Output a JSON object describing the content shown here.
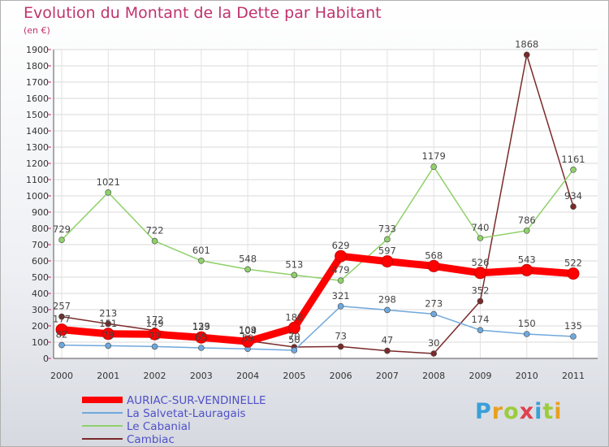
{
  "chart_data": {
    "type": "line",
    "title": "Evolution du Montant de la Dette par Habitant",
    "subtitle": "(en €)",
    "xlabel": "",
    "ylabel": "",
    "ylim": [
      0,
      1900
    ],
    "yticks": [
      0,
      100,
      200,
      300,
      400,
      500,
      600,
      700,
      800,
      900,
      1000,
      1100,
      1200,
      1300,
      1400,
      1500,
      1600,
      1700,
      1800,
      1900
    ],
    "categories": [
      "2000",
      "2001",
      "2002",
      "2003",
      "2004",
      "2005",
      "2006",
      "2007",
      "2008",
      "2009",
      "2010",
      "2011"
    ],
    "grid": true,
    "legend_position": "bottom-left",
    "series": [
      {
        "name": "AURIAC-SUR-VENDINELLE",
        "color": "#ff0000",
        "values": [
          177,
          151,
          149,
          129,
          104,
          188,
          629,
          597,
          568,
          526,
          543,
          522
        ]
      },
      {
        "name": "La Salvetat-Lauragais",
        "color": "#6fa8dc",
        "values": [
          82,
          78,
          73,
          65,
          59,
          50,
          321,
          298,
          273,
          174,
          150,
          135
        ]
      },
      {
        "name": "Le Cabanial",
        "color": "#8fd16a",
        "values": [
          729,
          1021,
          722,
          601,
          548,
          513,
          479,
          733,
          1179,
          740,
          786,
          1161
        ]
      },
      {
        "name": "Cambiac",
        "color": "#7a2a2a",
        "values": [
          257,
          213,
          172,
          133,
          109,
          70,
          73,
          47,
          30,
          352,
          1868,
          934
        ]
      }
    ]
  },
  "logo": {
    "p": "P",
    "r": "r",
    "o": "o",
    "x": "x",
    "i": "i",
    "t": "t",
    "i2": "i"
  }
}
